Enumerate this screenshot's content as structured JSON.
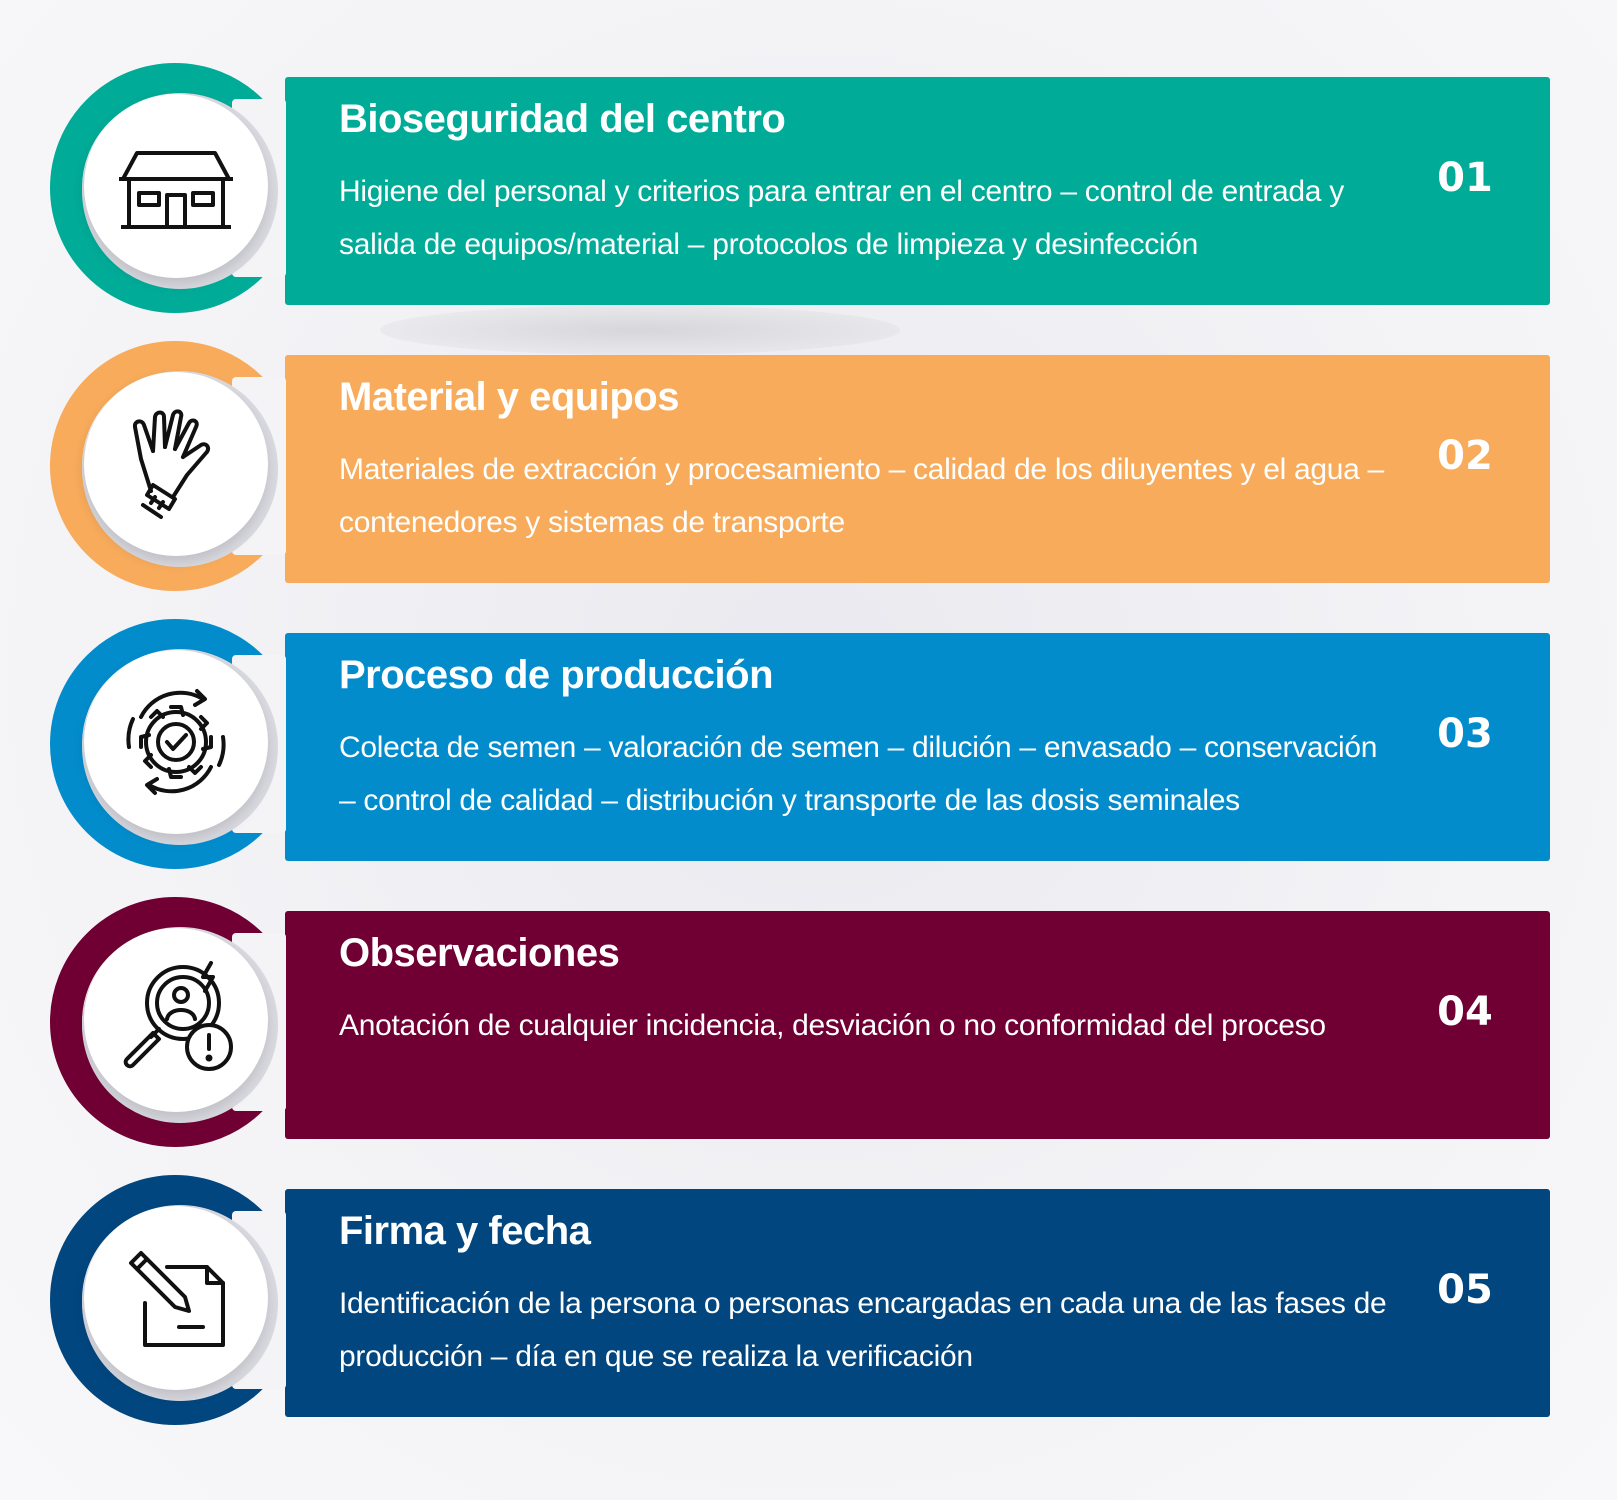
{
  "steps": [
    {
      "title": "Bioseguridad del centro",
      "description": "Higiene del personal y criterios para entrar en el centro – control de entrada y salida de equipos/material – protocolos de limpieza y desinfección",
      "number": "01",
      "color": "#00ab98",
      "icon": "house-icon"
    },
    {
      "title": "Material y equipos",
      "description": "Materiales de extracción y procesamiento – calidad de los diluyentes y el agua – contenedores y sistemas de transporte",
      "number": "02",
      "color": "#f7ab5b",
      "icon": "glove-icon"
    },
    {
      "title": "Proceso de producción",
      "description": "Colecta de semen – valoración de semen – dilución – envasado – conservación – control de calidad – distribución y transporte de las dosis seminales",
      "number": "03",
      "color": "#038ccc",
      "icon": "gear-check-icon"
    },
    {
      "title": "Observaciones",
      "description": "Anotación de cualquier incidencia, desviación o no conformidad del proceso",
      "number": "04",
      "color": "#700033",
      "icon": "magnifier-alert-icon"
    },
    {
      "title": "Firma y fecha",
      "description": "Identificación de la persona o personas encargadas en cada una de las fases de producción – día en que se realiza la verificación",
      "number": "05",
      "color": "#01467e",
      "icon": "document-pen-icon"
    }
  ]
}
